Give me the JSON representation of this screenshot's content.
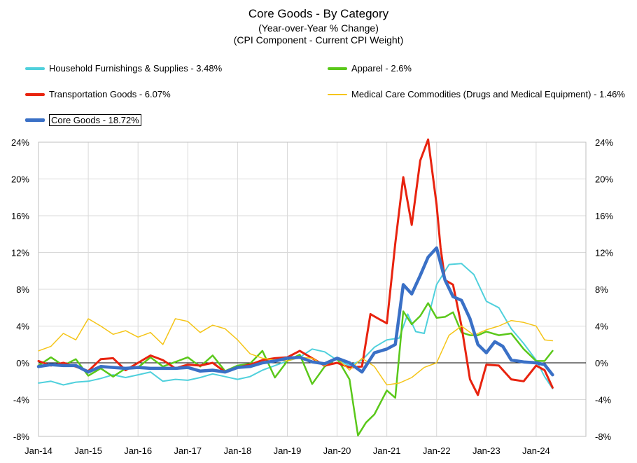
{
  "chart_data": {
    "type": "line",
    "title": "Core Goods - By Category",
    "subtitle": "(Year-over-Year % Change)",
    "subtitle2": "(CPI Component - Current CPI Weight)",
    "xlabel": "",
    "ylabel": "",
    "ylim": [
      -8,
      24
    ],
    "yticks": [
      "-8%",
      "-4%",
      "0%",
      "4%",
      "8%",
      "12%",
      "16%",
      "20%",
      "24%"
    ],
    "ytick_values": [
      -8,
      -4,
      0,
      4,
      8,
      12,
      16,
      20,
      24
    ],
    "xticks": [
      "Jan-14",
      "Jan-15",
      "Jan-16",
      "Jan-17",
      "Jan-18",
      "Jan-19",
      "Jan-20",
      "Jan-21",
      "Jan-22",
      "Jan-23",
      "Jan-24"
    ],
    "xtick_values": [
      2014,
      2015,
      2016,
      2017,
      2018,
      2019,
      2020,
      2021,
      2022,
      2023,
      2024
    ],
    "xlim": [
      2014,
      2025
    ],
    "grid": true,
    "legend_position": "top",
    "series": [
      {
        "name": "Household Furnishings & Supplies - 3.48%",
        "color": "#4fd0dc",
        "width": 2,
        "x": [
          2014.0,
          2014.25,
          2014.5,
          2014.75,
          2015.0,
          2015.25,
          2015.5,
          2015.75,
          2016.0,
          2016.25,
          2016.5,
          2016.75,
          2017.0,
          2017.25,
          2017.5,
          2017.75,
          2018.0,
          2018.25,
          2018.5,
          2018.75,
          2019.0,
          2019.25,
          2019.5,
          2019.75,
          2020.0,
          2020.25,
          2020.5,
          2020.75,
          2021.0,
          2021.25,
          2021.42,
          2021.58,
          2021.75,
          2022.0,
          2022.25,
          2022.5,
          2022.75,
          2023.0,
          2023.25,
          2023.5,
          2023.75,
          2024.0,
          2024.17,
          2024.33
        ],
        "y": [
          -2.2,
          -2.0,
          -2.4,
          -2.1,
          -2.0,
          -1.7,
          -1.3,
          -1.6,
          -1.3,
          -1.0,
          -2.0,
          -1.8,
          -1.9,
          -1.6,
          -1.2,
          -1.5,
          -1.8,
          -1.5,
          -0.8,
          -0.3,
          0.2,
          0.6,
          1.5,
          1.2,
          0.3,
          -0.3,
          0.3,
          1.7,
          2.5,
          2.7,
          5.3,
          3.4,
          3.2,
          8.5,
          10.7,
          10.8,
          9.6,
          6.7,
          6.0,
          3.7,
          2.1,
          0.3,
          -1.5,
          -2.8
        ]
      },
      {
        "name": "Apparel - 2.6%",
        "color": "#5ac81a",
        "width": 2.5,
        "x": [
          2014.0,
          2014.25,
          2014.5,
          2014.75,
          2015.0,
          2015.25,
          2015.5,
          2015.75,
          2016.0,
          2016.25,
          2016.5,
          2016.75,
          2017.0,
          2017.25,
          2017.5,
          2017.75,
          2018.0,
          2018.25,
          2018.5,
          2018.75,
          2019.0,
          2019.25,
          2019.5,
          2019.75,
          2020.0,
          2020.25,
          2020.42,
          2020.58,
          2020.75,
          2021.0,
          2021.17,
          2021.33,
          2021.5,
          2021.67,
          2021.83,
          2022.0,
          2022.17,
          2022.33,
          2022.5,
          2022.67,
          2022.83,
          2023.0,
          2023.25,
          2023.5,
          2023.75,
          2024.0,
          2024.17,
          2024.33
        ],
        "y": [
          -0.3,
          0.6,
          -0.3,
          0.4,
          -1.4,
          -0.6,
          -1.5,
          -0.6,
          -0.5,
          0.6,
          -0.4,
          0.1,
          0.6,
          -0.4,
          0.8,
          -0.9,
          -0.3,
          -0.1,
          1.3,
          -1.6,
          0.2,
          0.9,
          -2.3,
          -0.4,
          0.5,
          -1.8,
          -7.9,
          -6.5,
          -5.6,
          -3.0,
          -3.8,
          5.6,
          4.2,
          5.1,
          6.5,
          4.9,
          5.0,
          5.5,
          3.3,
          3.0,
          3.0,
          3.4,
          3.0,
          3.2,
          1.5,
          0.2,
          0.2,
          1.3
        ]
      },
      {
        "name": "Transportation Goods - 6.07%",
        "color": "#e8230f",
        "width": 3,
        "x": [
          2014.0,
          2014.25,
          2014.5,
          2014.75,
          2015.0,
          2015.25,
          2015.5,
          2015.75,
          2016.0,
          2016.25,
          2016.5,
          2016.75,
          2017.0,
          2017.25,
          2017.5,
          2017.75,
          2018.0,
          2018.25,
          2018.5,
          2018.75,
          2019.0,
          2019.25,
          2019.5,
          2019.75,
          2020.0,
          2020.25,
          2020.5,
          2020.67,
          2020.83,
          2021.0,
          2021.17,
          2021.33,
          2021.5,
          2021.67,
          2021.83,
          2022.0,
          2022.08,
          2022.17,
          2022.33,
          2022.5,
          2022.67,
          2022.83,
          2023.0,
          2023.25,
          2023.5,
          2023.75,
          2024.0,
          2024.17,
          2024.33
        ],
        "y": [
          0.2,
          -0.3,
          0.0,
          -0.4,
          -0.9,
          0.4,
          0.5,
          -0.8,
          0.0,
          0.8,
          0.3,
          -0.6,
          -0.2,
          -0.3,
          0.0,
          -1.0,
          -0.5,
          -0.2,
          0.3,
          0.5,
          0.6,
          1.3,
          0.5,
          -0.3,
          0.0,
          -0.5,
          -0.4,
          5.3,
          4.8,
          4.3,
          13.0,
          20.2,
          15.0,
          22.0,
          24.3,
          17.2,
          12.5,
          9.0,
          8.5,
          4.0,
          -1.8,
          -3.5,
          -0.2,
          -0.3,
          -1.8,
          -2.0,
          -0.3,
          -0.8,
          -2.7
        ]
      },
      {
        "name": "Medical Care Commodities (Drugs and Medical Equipment) - 1.46%",
        "color": "#f5c518",
        "width": 1.5,
        "x": [
          2014.0,
          2014.25,
          2014.5,
          2014.75,
          2015.0,
          2015.25,
          2015.5,
          2015.75,
          2016.0,
          2016.25,
          2016.5,
          2016.75,
          2017.0,
          2017.25,
          2017.5,
          2017.75,
          2018.0,
          2018.25,
          2018.5,
          2018.75,
          2019.0,
          2019.25,
          2019.5,
          2019.75,
          2020.0,
          2020.25,
          2020.5,
          2020.75,
          2021.0,
          2021.25,
          2021.5,
          2021.75,
          2022.0,
          2022.25,
          2022.5,
          2022.75,
          2023.0,
          2023.25,
          2023.5,
          2023.75,
          2024.0,
          2024.17,
          2024.33
        ],
        "y": [
          1.3,
          1.8,
          3.2,
          2.5,
          4.8,
          4.0,
          3.1,
          3.5,
          2.8,
          3.3,
          2.0,
          4.8,
          4.5,
          3.3,
          4.1,
          3.7,
          2.5,
          1.0,
          0.5,
          0.3,
          0.2,
          0.6,
          0.5,
          -0.3,
          0.5,
          -0.8,
          0.5,
          -0.4,
          -2.4,
          -2.2,
          -1.6,
          -0.5,
          0.0,
          3.0,
          4.0,
          3.0,
          3.6,
          4.0,
          4.6,
          4.4,
          4.0,
          2.5,
          2.4
        ]
      },
      {
        "name": "Core Goods - 18.72%",
        "color": "#3a70c6",
        "width": 4.5,
        "x": [
          2014.0,
          2014.25,
          2014.5,
          2014.75,
          2015.0,
          2015.25,
          2015.5,
          2015.75,
          2016.0,
          2016.25,
          2016.5,
          2016.75,
          2017.0,
          2017.25,
          2017.5,
          2017.75,
          2018.0,
          2018.25,
          2018.5,
          2018.75,
          2019.0,
          2019.25,
          2019.5,
          2019.75,
          2020.0,
          2020.25,
          2020.5,
          2020.75,
          2021.0,
          2021.17,
          2021.33,
          2021.5,
          2021.67,
          2021.83,
          2022.0,
          2022.17,
          2022.33,
          2022.5,
          2022.67,
          2022.83,
          2023.0,
          2023.17,
          2023.33,
          2023.5,
          2023.75,
          2024.0,
          2024.17,
          2024.33
        ],
        "y": [
          -0.4,
          -0.2,
          -0.3,
          -0.3,
          -1.0,
          -0.4,
          -0.5,
          -0.6,
          -0.5,
          -0.6,
          -0.6,
          -0.6,
          -0.5,
          -0.9,
          -0.8,
          -1.0,
          -0.5,
          -0.4,
          0.0,
          0.2,
          0.5,
          0.6,
          0.1,
          -0.1,
          0.5,
          0.0,
          -1.0,
          1.1,
          1.5,
          2.0,
          8.5,
          7.5,
          9.5,
          11.5,
          12.5,
          9.0,
          7.2,
          6.8,
          4.8,
          2.0,
          1.1,
          2.3,
          1.8,
          0.3,
          0.1,
          0.0,
          -0.2,
          -1.3
        ]
      }
    ]
  }
}
